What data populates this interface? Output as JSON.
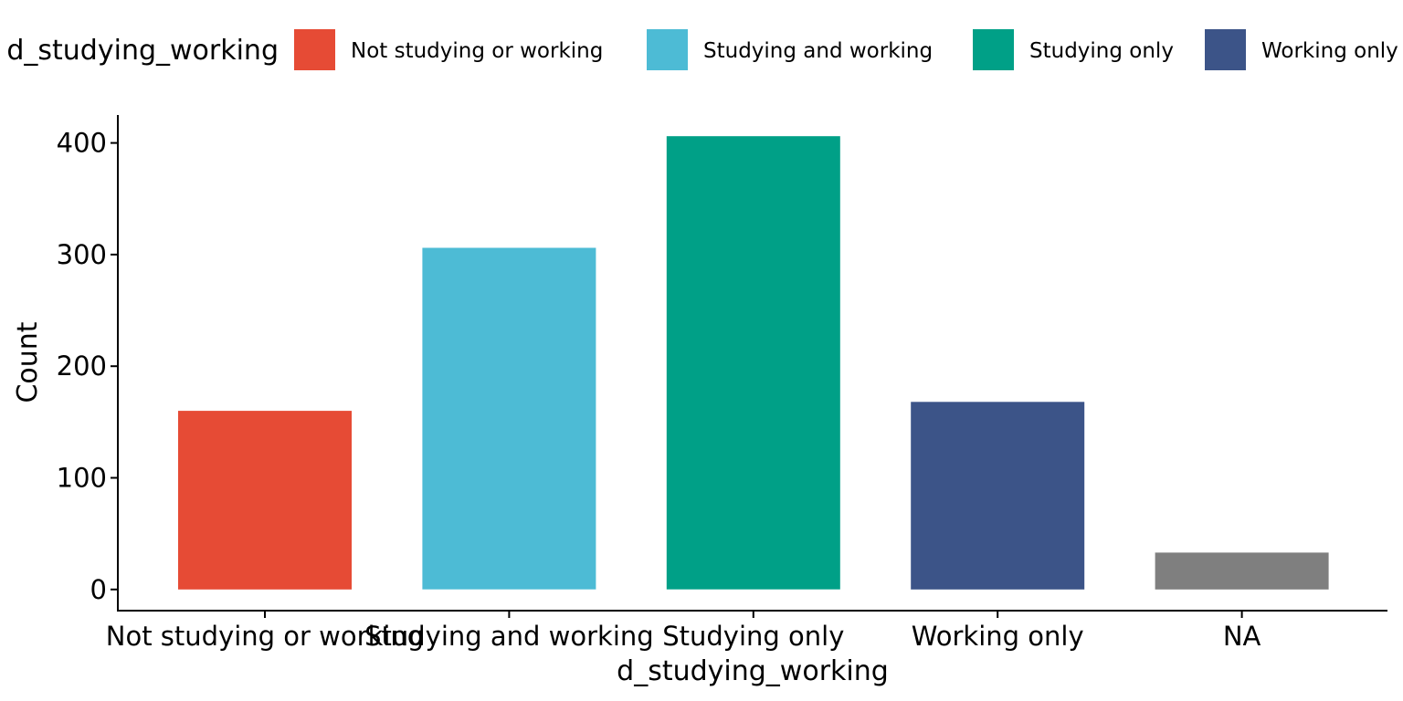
{
  "chart_data": {
    "type": "bar",
    "xlabel": "d_studying_working",
    "ylabel": "Count",
    "categories": [
      "Not studying or working",
      "Studying and working",
      "Studying only",
      "Working only",
      "NA"
    ],
    "values": [
      160,
      306,
      406,
      168,
      33
    ],
    "colors": [
      "#E64B35",
      "#4DBBD5",
      "#00A087",
      "#3C5488",
      "#7F7F7F"
    ],
    "ylim": [
      -19,
      425
    ],
    "yticks": [
      0,
      100,
      200,
      300,
      400
    ],
    "grid": false,
    "legend": {
      "position": "top",
      "title": "d_studying_working",
      "entries": [
        {
          "label": "Not studying or working",
          "color": "#E64B35"
        },
        {
          "label": "Studying and working",
          "color": "#4DBBD5"
        },
        {
          "label": "Studying only",
          "color": "#00A087"
        },
        {
          "label": "Working only",
          "color": "#3C5488"
        }
      ]
    }
  }
}
